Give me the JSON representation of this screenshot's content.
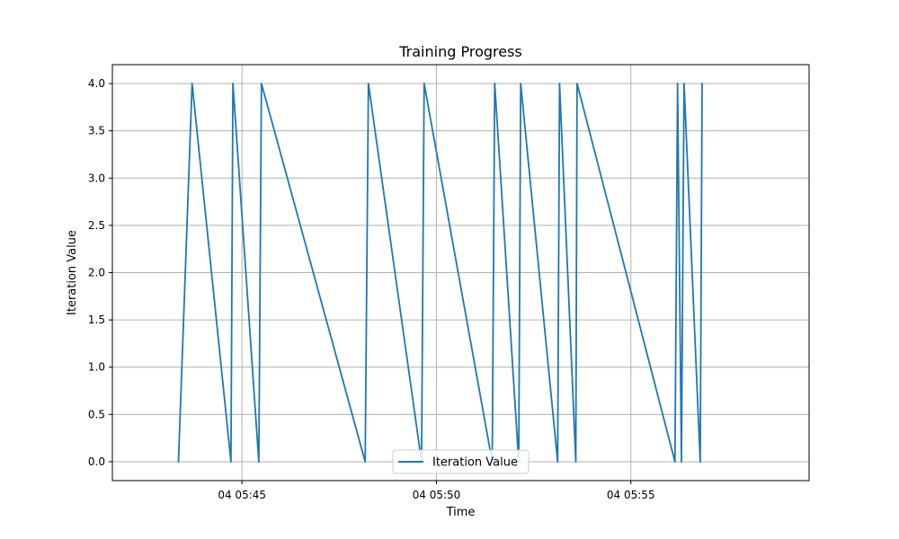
{
  "chart_data": {
    "type": "line",
    "title": "Training Progress",
    "xlabel": "Time",
    "ylabel": "Iteration Value",
    "grid": true,
    "legend_position": "bottom-center",
    "x_axis": {
      "unit": "time",
      "range": [
        "04 05:41:40",
        "04 05:59:35"
      ],
      "ticks": [
        "04 05:45",
        "04 05:50",
        "04 05:55"
      ]
    },
    "y_axis": {
      "range": [
        -0.2,
        4.2
      ],
      "ticks": [
        "0.0",
        "0.5",
        "1.0",
        "1.5",
        "2.0",
        "2.5",
        "3.0",
        "3.5",
        "4.0"
      ]
    },
    "series": [
      {
        "name": "Iteration Value",
        "color": "#1f77b4",
        "points": [
          {
            "x": "04 05:43:22",
            "y": 0
          },
          {
            "x": "04 05:43:43",
            "y": 4
          },
          {
            "x": "04 05:44:43",
            "y": 0
          },
          {
            "x": "04 05:44:46",
            "y": 4
          },
          {
            "x": "04 05:45:26",
            "y": 0
          },
          {
            "x": "04 05:45:30",
            "y": 4
          },
          {
            "x": "04 05:48:10",
            "y": 0
          },
          {
            "x": "04 05:48:15",
            "y": 4
          },
          {
            "x": "04 05:49:37",
            "y": 0
          },
          {
            "x": "04 05:49:41",
            "y": 4
          },
          {
            "x": "04 05:51:26",
            "y": 0
          },
          {
            "x": "04 05:51:30",
            "y": 4
          },
          {
            "x": "04 05:52:07",
            "y": 0
          },
          {
            "x": "04 05:52:10",
            "y": 4
          },
          {
            "x": "04 05:53:07",
            "y": 0
          },
          {
            "x": "04 05:53:10",
            "y": 4
          },
          {
            "x": "04 05:53:35",
            "y": 0
          },
          {
            "x": "04 05:53:37",
            "y": 4
          },
          {
            "x": "04 05:56:08",
            "y": 0
          },
          {
            "x": "04 05:56:12",
            "y": 4
          },
          {
            "x": "04 05:56:18",
            "y": 0
          },
          {
            "x": "04 05:56:22",
            "y": 4
          },
          {
            "x": "04 05:56:47",
            "y": 0
          },
          {
            "x": "04 05:56:50",
            "y": 4
          }
        ]
      }
    ]
  }
}
